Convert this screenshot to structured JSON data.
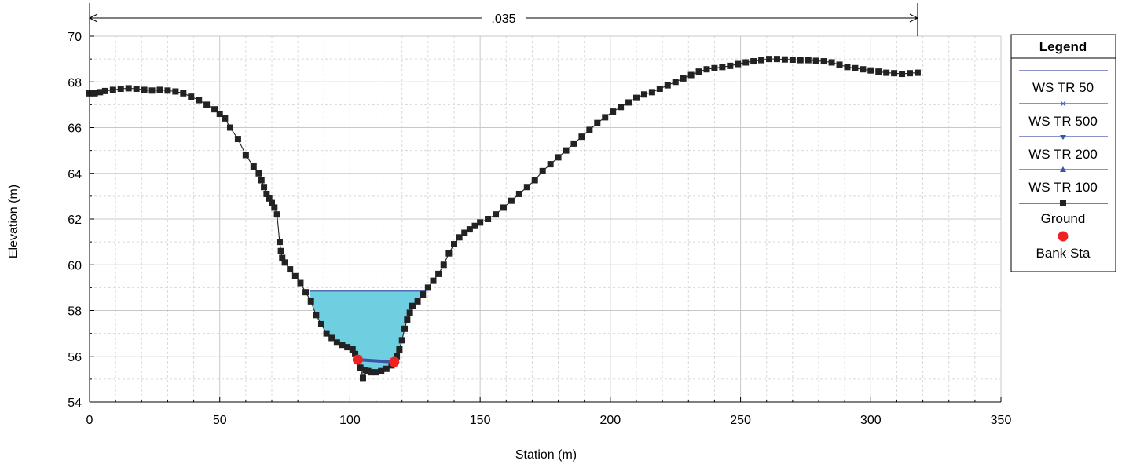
{
  "chart_data": {
    "type": "line",
    "xlabel": "Station (m)",
    "ylabel": "Elevation (m)",
    "xlim": [
      0,
      350
    ],
    "ylim": [
      54,
      70
    ],
    "x_ticks": [
      "0",
      "50",
      "100",
      "150",
      "200",
      "250",
      "300",
      "350"
    ],
    "y_ticks": [
      "54",
      "56",
      "58",
      "60",
      "62",
      "64",
      "66",
      "68",
      "70"
    ],
    "grid": true,
    "roughness_label": ".035",
    "roughness_range": [
      0,
      318
    ],
    "legend": {
      "title": "Legend",
      "position": "right",
      "entries": [
        "WS TR 50",
        "WS TR 500",
        "WS TR 200",
        "WS TR 100",
        "Ground",
        "Bank Sta"
      ]
    },
    "water_surface": {
      "elevation": 58.85,
      "x_left": 84.5,
      "x_right": 129,
      "color": "#6ecfe0"
    },
    "bank_stations": [
      {
        "x": 103,
        "y": 55.85
      },
      {
        "x": 117,
        "y": 55.75
      }
    ],
    "series": [
      {
        "name": "Ground",
        "color": "#222222",
        "points": [
          [
            0,
            67.5
          ],
          [
            2,
            67.5
          ],
          [
            4,
            67.55
          ],
          [
            6,
            67.6
          ],
          [
            9,
            67.65
          ],
          [
            12,
            67.7
          ],
          [
            15,
            67.72
          ],
          [
            18,
            67.7
          ],
          [
            21,
            67.65
          ],
          [
            24,
            67.62
          ],
          [
            27,
            67.65
          ],
          [
            30,
            67.62
          ],
          [
            33,
            67.58
          ],
          [
            36,
            67.5
          ],
          [
            39,
            67.35
          ],
          [
            42,
            67.2
          ],
          [
            45,
            67.0
          ],
          [
            48,
            66.8
          ],
          [
            50,
            66.6
          ],
          [
            52,
            66.4
          ],
          [
            54,
            66.0
          ],
          [
            57,
            65.5
          ],
          [
            60,
            64.8
          ],
          [
            63,
            64.3
          ],
          [
            65,
            64.0
          ],
          [
            66,
            63.7
          ],
          [
            67,
            63.4
          ],
          [
            68,
            63.1
          ],
          [
            69,
            62.9
          ],
          [
            70,
            62.7
          ],
          [
            71,
            62.5
          ],
          [
            72,
            62.2
          ],
          [
            73,
            61.0
          ],
          [
            73.5,
            60.6
          ],
          [
            74,
            60.3
          ],
          [
            75,
            60.1
          ],
          [
            77,
            59.8
          ],
          [
            79,
            59.5
          ],
          [
            81,
            59.2
          ],
          [
            83,
            58.8
          ],
          [
            85,
            58.4
          ],
          [
            87,
            57.8
          ],
          [
            89,
            57.4
          ],
          [
            91,
            57.0
          ],
          [
            93,
            56.8
          ],
          [
            95,
            56.6
          ],
          [
            97,
            56.5
          ],
          [
            99,
            56.4
          ],
          [
            101,
            56.3
          ],
          [
            102,
            56.1
          ],
          [
            103,
            55.85
          ],
          [
            104,
            55.5
          ],
          [
            105,
            55.05
          ],
          [
            106,
            55.4
          ],
          [
            107,
            55.35
          ],
          [
            108,
            55.3
          ],
          [
            110,
            55.3
          ],
          [
            112,
            55.35
          ],
          [
            114,
            55.45
          ],
          [
            116,
            55.6
          ],
          [
            117,
            55.75
          ],
          [
            118,
            56.0
          ],
          [
            119,
            56.3
          ],
          [
            120,
            56.7
          ],
          [
            121,
            57.2
          ],
          [
            122,
            57.6
          ],
          [
            123,
            57.9
          ],
          [
            124,
            58.2
          ],
          [
            126,
            58.4
          ],
          [
            128,
            58.7
          ],
          [
            130,
            59.0
          ],
          [
            132,
            59.3
          ],
          [
            134,
            59.6
          ],
          [
            136,
            60.0
          ],
          [
            138,
            60.5
          ],
          [
            140,
            60.9
          ],
          [
            142,
            61.2
          ],
          [
            144,
            61.4
          ],
          [
            146,
            61.55
          ],
          [
            148,
            61.7
          ],
          [
            150,
            61.85
          ],
          [
            153,
            62.0
          ],
          [
            156,
            62.2
          ],
          [
            159,
            62.5
          ],
          [
            162,
            62.8
          ],
          [
            165,
            63.1
          ],
          [
            168,
            63.4
          ],
          [
            171,
            63.7
          ],
          [
            174,
            64.1
          ],
          [
            177,
            64.4
          ],
          [
            180,
            64.7
          ],
          [
            183,
            65.0
          ],
          [
            186,
            65.3
          ],
          [
            189,
            65.6
          ],
          [
            192,
            65.9
          ],
          [
            195,
            66.2
          ],
          [
            198,
            66.45
          ],
          [
            201,
            66.7
          ],
          [
            204,
            66.9
          ],
          [
            207,
            67.1
          ],
          [
            210,
            67.3
          ],
          [
            213,
            67.45
          ],
          [
            216,
            67.55
          ],
          [
            219,
            67.7
          ],
          [
            222,
            67.85
          ],
          [
            225,
            68.0
          ],
          [
            228,
            68.15
          ],
          [
            231,
            68.3
          ],
          [
            234,
            68.45
          ],
          [
            237,
            68.55
          ],
          [
            240,
            68.6
          ],
          [
            243,
            68.65
          ],
          [
            246,
            68.7
          ],
          [
            249,
            68.78
          ],
          [
            252,
            68.85
          ],
          [
            255,
            68.9
          ],
          [
            258,
            68.95
          ],
          [
            261,
            69.0
          ],
          [
            264,
            69.0
          ],
          [
            267,
            68.98
          ],
          [
            270,
            68.97
          ],
          [
            273,
            68.95
          ],
          [
            276,
            68.95
          ],
          [
            279,
            68.92
          ],
          [
            282,
            68.9
          ],
          [
            285,
            68.85
          ],
          [
            288,
            68.75
          ],
          [
            291,
            68.65
          ],
          [
            294,
            68.6
          ],
          [
            297,
            68.55
          ],
          [
            300,
            68.5
          ],
          [
            303,
            68.45
          ],
          [
            306,
            68.4
          ],
          [
            309,
            68.38
          ],
          [
            312,
            68.35
          ],
          [
            315,
            68.38
          ],
          [
            318,
            68.4
          ]
        ]
      }
    ]
  }
}
